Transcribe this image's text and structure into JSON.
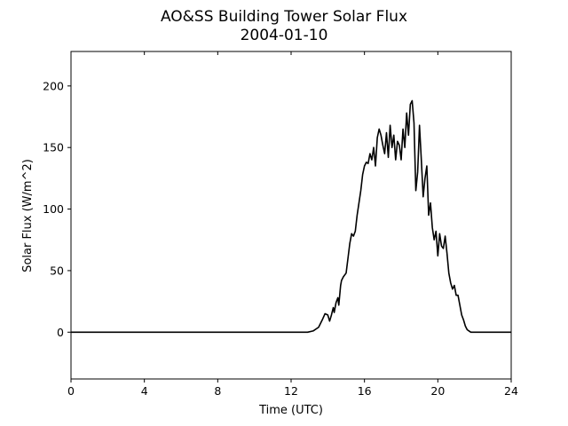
{
  "chart_data": {
    "type": "line",
    "title": "AO&SS Building Tower Solar Flux",
    "subtitle": "2004-01-10",
    "xlabel": "Time (UTC)",
    "ylabel": "Solar Flux (W/m^2)",
    "xlim": [
      0,
      24
    ],
    "ylim": [
      -38,
      228
    ],
    "xticks": [
      0,
      4,
      8,
      12,
      16,
      20,
      24
    ],
    "yticks": [
      0,
      50,
      100,
      150,
      200
    ],
    "grid": false,
    "line_color": "#000000",
    "series": [
      {
        "x": [
          0,
          12.9,
          13.2,
          13.5,
          13.7,
          13.85,
          14.0,
          14.1,
          14.2,
          14.3,
          14.35,
          14.45,
          14.55,
          14.6,
          14.7,
          14.75,
          14.85,
          15.0,
          15.1,
          15.2,
          15.3,
          15.4,
          15.5,
          15.6,
          15.7,
          15.8,
          15.9,
          16.0,
          16.1,
          16.2,
          16.3,
          16.4,
          16.5,
          16.6,
          16.7,
          16.8,
          16.9,
          17.0,
          17.1,
          17.2,
          17.3,
          17.4,
          17.5,
          17.6,
          17.7,
          17.8,
          17.9,
          18.0,
          18.1,
          18.2,
          18.3,
          18.4,
          18.5,
          18.6,
          18.7,
          18.8,
          18.9,
          19.0,
          19.1,
          19.2,
          19.3,
          19.4,
          19.5,
          19.6,
          19.7,
          19.8,
          19.9,
          20.0,
          20.1,
          20.2,
          20.3,
          20.4,
          20.5,
          20.6,
          20.7,
          20.8,
          20.9,
          21.0,
          21.1,
          21.2,
          21.3,
          21.4,
          21.5,
          21.6,
          21.7,
          21.8,
          21.9,
          22.0,
          22.1,
          22.2,
          22.4,
          22.6,
          22.8,
          23.0,
          23.3,
          24.0
        ],
        "y": [
          0,
          0,
          1,
          4,
          10,
          15,
          14,
          9,
          14,
          20,
          16,
          24,
          28,
          22,
          38,
          42,
          45,
          48,
          60,
          72,
          80,
          78,
          82,
          95,
          105,
          115,
          128,
          135,
          138,
          137,
          145,
          140,
          150,
          135,
          158,
          165,
          160,
          152,
          145,
          162,
          142,
          168,
          150,
          160,
          140,
          155,
          152,
          140,
          165,
          150,
          178,
          160,
          185,
          188,
          170,
          115,
          130,
          168,
          140,
          110,
          125,
          135,
          95,
          105,
          85,
          75,
          82,
          62,
          80,
          70,
          68,
          78,
          64,
          48,
          40,
          35,
          38,
          30,
          30,
          22,
          14,
          10,
          5,
          2,
          1,
          0,
          0,
          0,
          0,
          0,
          0,
          0,
          0,
          0,
          0,
          0
        ]
      }
    ]
  }
}
